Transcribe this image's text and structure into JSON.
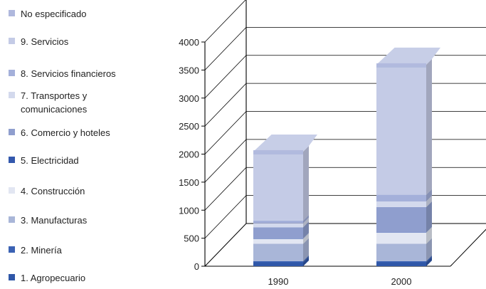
{
  "chart_data": {
    "type": "bar",
    "stacked": true,
    "three_d": true,
    "categories": [
      "1990",
      "2000"
    ],
    "y_ticks": [
      0,
      500,
      1000,
      1500,
      2000,
      2500,
      3000,
      3500,
      4000
    ],
    "ylim": [
      0,
      4000
    ],
    "grid": true,
    "legend_position": "left",
    "series": [
      {
        "name": "1. Agropecuario",
        "color": "#2f57a8",
        "values": [
          70,
          70
        ]
      },
      {
        "name": "2. Minería",
        "color": "#3b62b4",
        "values": [
          20,
          20
        ]
      },
      {
        "name": "3. Manufacturas",
        "color": "#a9b6d8",
        "values": [
          310,
          310
        ]
      },
      {
        "name": "4. Construcción",
        "color": "#e2e6f2",
        "values": [
          90,
          200
        ]
      },
      {
        "name": "5. Electricidad",
        "color": "#3358ad",
        "values": [
          5,
          5
        ]
      },
      {
        "name": "6. Comercio y hoteles",
        "color": "#8f9ece",
        "values": [
          200,
          450
        ]
      },
      {
        "name": "7. Transportes y\ncomunicaciones",
        "color": "#d3d9ed",
        "values": [
          70,
          100
        ]
      },
      {
        "name": "8. Servicios financieros",
        "color": "#a4b0da",
        "values": [
          50,
          120
        ]
      },
      {
        "name": "9. Servicios",
        "color": "#c4cbe6",
        "values": [
          1230,
          2320
        ]
      },
      {
        "name": "No especificado",
        "color": "#afb8dd",
        "values": [
          0,
          0
        ]
      }
    ],
    "legend": [
      {
        "label": "No especificado",
        "color": "#afb8dd"
      },
      {
        "label": "9. Servicios",
        "color": "#c4cbe6"
      },
      {
        "label": "8. Servicios financieros",
        "color": "#a4b0da"
      },
      {
        "label": "7. Transportes y\ncomunicaciones",
        "color": "#d3d9ed"
      },
      {
        "label": "6. Comercio y hoteles",
        "color": "#8f9ece"
      },
      {
        "label": "5. Electricidad",
        "color": "#3358ad"
      },
      {
        "label": "4. Construcción",
        "color": "#e2e6f2"
      },
      {
        "label": "3. Manufacturas",
        "color": "#a9b6d8"
      },
      {
        "label": "2. Minería",
        "color": "#3b62b4"
      },
      {
        "label": "1. Agropecuario",
        "color": "#2f57a8"
      }
    ]
  }
}
